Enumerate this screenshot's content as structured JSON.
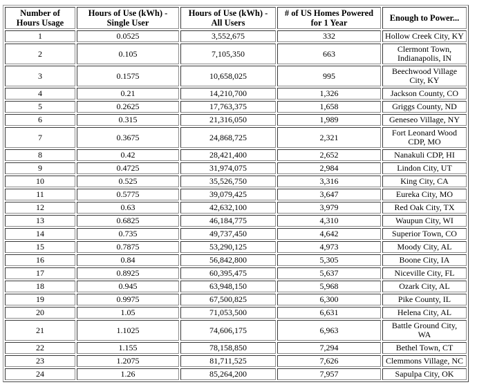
{
  "colors": {
    "background": "#ffffff",
    "text": "#000000",
    "border_dark": "#6f6f6f",
    "border_light": "#d9d9d9"
  },
  "chart_data": {
    "type": "table",
    "columns": [
      "Number of\nHours Usage",
      "Hours of Use (kWh) -\nSingle User",
      "Hours of Use (kWh) -\nAll Users",
      "# of US Homes Powered\nfor 1 Year",
      "Enough to Power..."
    ],
    "rows": [
      [
        "1",
        "0.0525",
        "3,552,675",
        "332",
        "Hollow Creek City, KY"
      ],
      [
        "2",
        "0.105",
        "7,105,350",
        "663",
        "Clermont Town,\nIndianapolis, IN"
      ],
      [
        "3",
        "0.1575",
        "10,658,025",
        "995",
        "Beechwood Village\nCity, KY"
      ],
      [
        "4",
        "0.21",
        "14,210,700",
        "1,326",
        "Jackson County, CO"
      ],
      [
        "5",
        "0.2625",
        "17,763,375",
        "1,658",
        "Griggs County, ND"
      ],
      [
        "6",
        "0.315",
        "21,316,050",
        "1,989",
        "Geneseo Village, NY"
      ],
      [
        "7",
        "0.3675",
        "24,868,725",
        "2,321",
        "Fort Leonard Wood\nCDP, MO"
      ],
      [
        "8",
        "0.42",
        "28,421,400",
        "2,652",
        "Nanakuli CDP, HI"
      ],
      [
        "9",
        "0.4725",
        "31,974,075",
        "2,984",
        "Lindon City, UT"
      ],
      [
        "10",
        "0.525",
        "35,526,750",
        "3,316",
        "King City, CA"
      ],
      [
        "11",
        "0.5775",
        "39,079,425",
        "3,647",
        "Eureka City, MO"
      ],
      [
        "12",
        "0.63",
        "42,632,100",
        "3,979",
        "Red Oak City, TX"
      ],
      [
        "13",
        "0.6825",
        "46,184,775",
        "4,310",
        "Waupun City, WI"
      ],
      [
        "14",
        "0.735",
        "49,737,450",
        "4,642",
        "Superior Town, CO"
      ],
      [
        "15",
        "0.7875",
        "53,290,125",
        "4,973",
        "Moody City, AL"
      ],
      [
        "16",
        "0.84",
        "56,842,800",
        "5,305",
        "Boone City, IA"
      ],
      [
        "17",
        "0.8925",
        "60,395,475",
        "5,637",
        "Niceville City, FL"
      ],
      [
        "18",
        "0.945",
        "63,948,150",
        "5,968",
        "Ozark City, AL"
      ],
      [
        "19",
        "0.9975",
        "67,500,825",
        "6,300",
        "Pike County, IL"
      ],
      [
        "20",
        "1.05",
        "71,053,500",
        "6,631",
        "Helena City, AL"
      ],
      [
        "21",
        "1.1025",
        "74,606,175",
        "6,963",
        "Battle Ground City,\nWA"
      ],
      [
        "22",
        "1.155",
        "78,158,850",
        "7,294",
        "Bethel Town, CT"
      ],
      [
        "23",
        "1.2075",
        "81,711,525",
        "7,626",
        "Clemmons Village, NC"
      ],
      [
        "24",
        "1.26",
        "85,264,200",
        "7,957",
        "Sapulpa City, OK"
      ]
    ]
  }
}
